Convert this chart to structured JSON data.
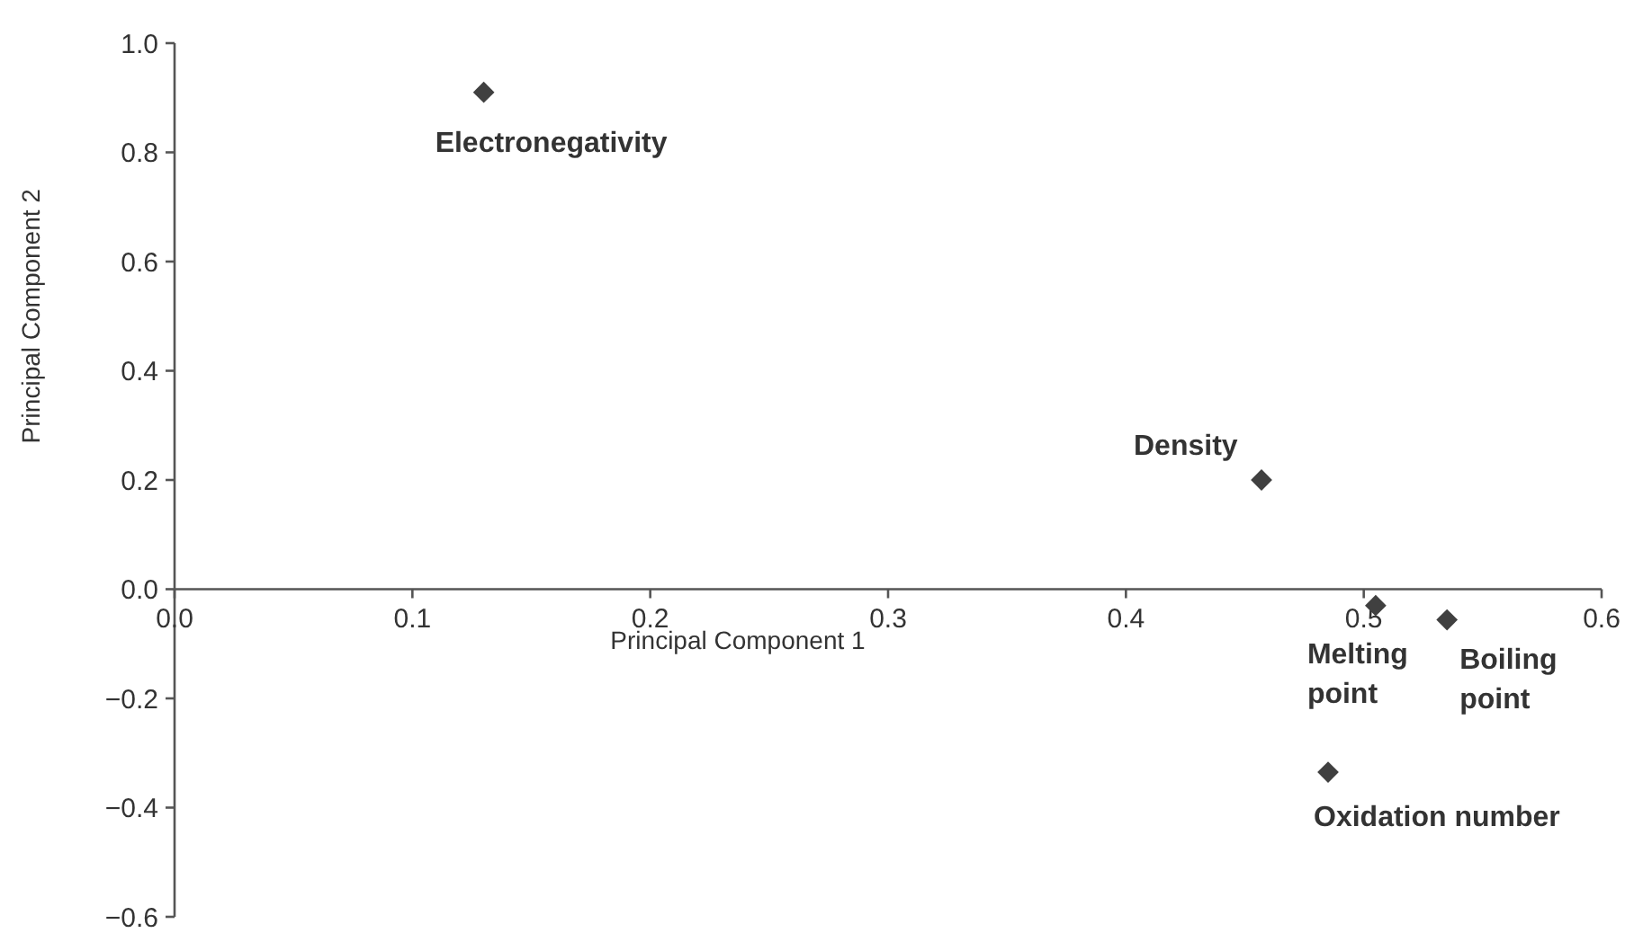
{
  "chart_data": {
    "type": "scatter",
    "xlabel": "Principal Component 1",
    "ylabel": "Principal Component 2",
    "xlim": [
      0,
      0.6
    ],
    "ylim": [
      -0.6,
      1.0
    ],
    "xticks": [
      {
        "value": 0,
        "label": "0.0"
      },
      0.1,
      0.2,
      0.3,
      0.4,
      0.5,
      0.6
    ],
    "yticks": [
      {
        "value": -0.6,
        "label": "−0.6"
      },
      {
        "value": -0.4,
        "label": "−0.4"
      },
      {
        "value": -0.2,
        "label": "−0.2"
      },
      {
        "value": 0,
        "label": "0.0"
      },
      0.2,
      0.4,
      0.6,
      0.8,
      {
        "value": 1,
        "label": "1.0"
      }
    ],
    "series": [
      {
        "color": "#404040",
        "x": [
          0.13,
          0.457,
          0.505,
          0.535,
          0.485
        ],
        "values": [
          0.91,
          0.2,
          -0.03,
          -0.056,
          -0.335
        ]
      }
    ],
    "marker": "diamond",
    "annotations": [
      {
        "text": "Electronegativity",
        "x": 0.13,
        "y": 0.91
      },
      {
        "text": "Density",
        "x": 0.457,
        "y": 0.2
      },
      {
        "text": "Melting point",
        "x": 0.505,
        "y": -0.03
      },
      {
        "text": "Boiling point",
        "x": 0.535,
        "y": -0.056
      },
      {
        "text": "Oxidation number",
        "x": 0.485,
        "y": -0.335
      }
    ]
  }
}
